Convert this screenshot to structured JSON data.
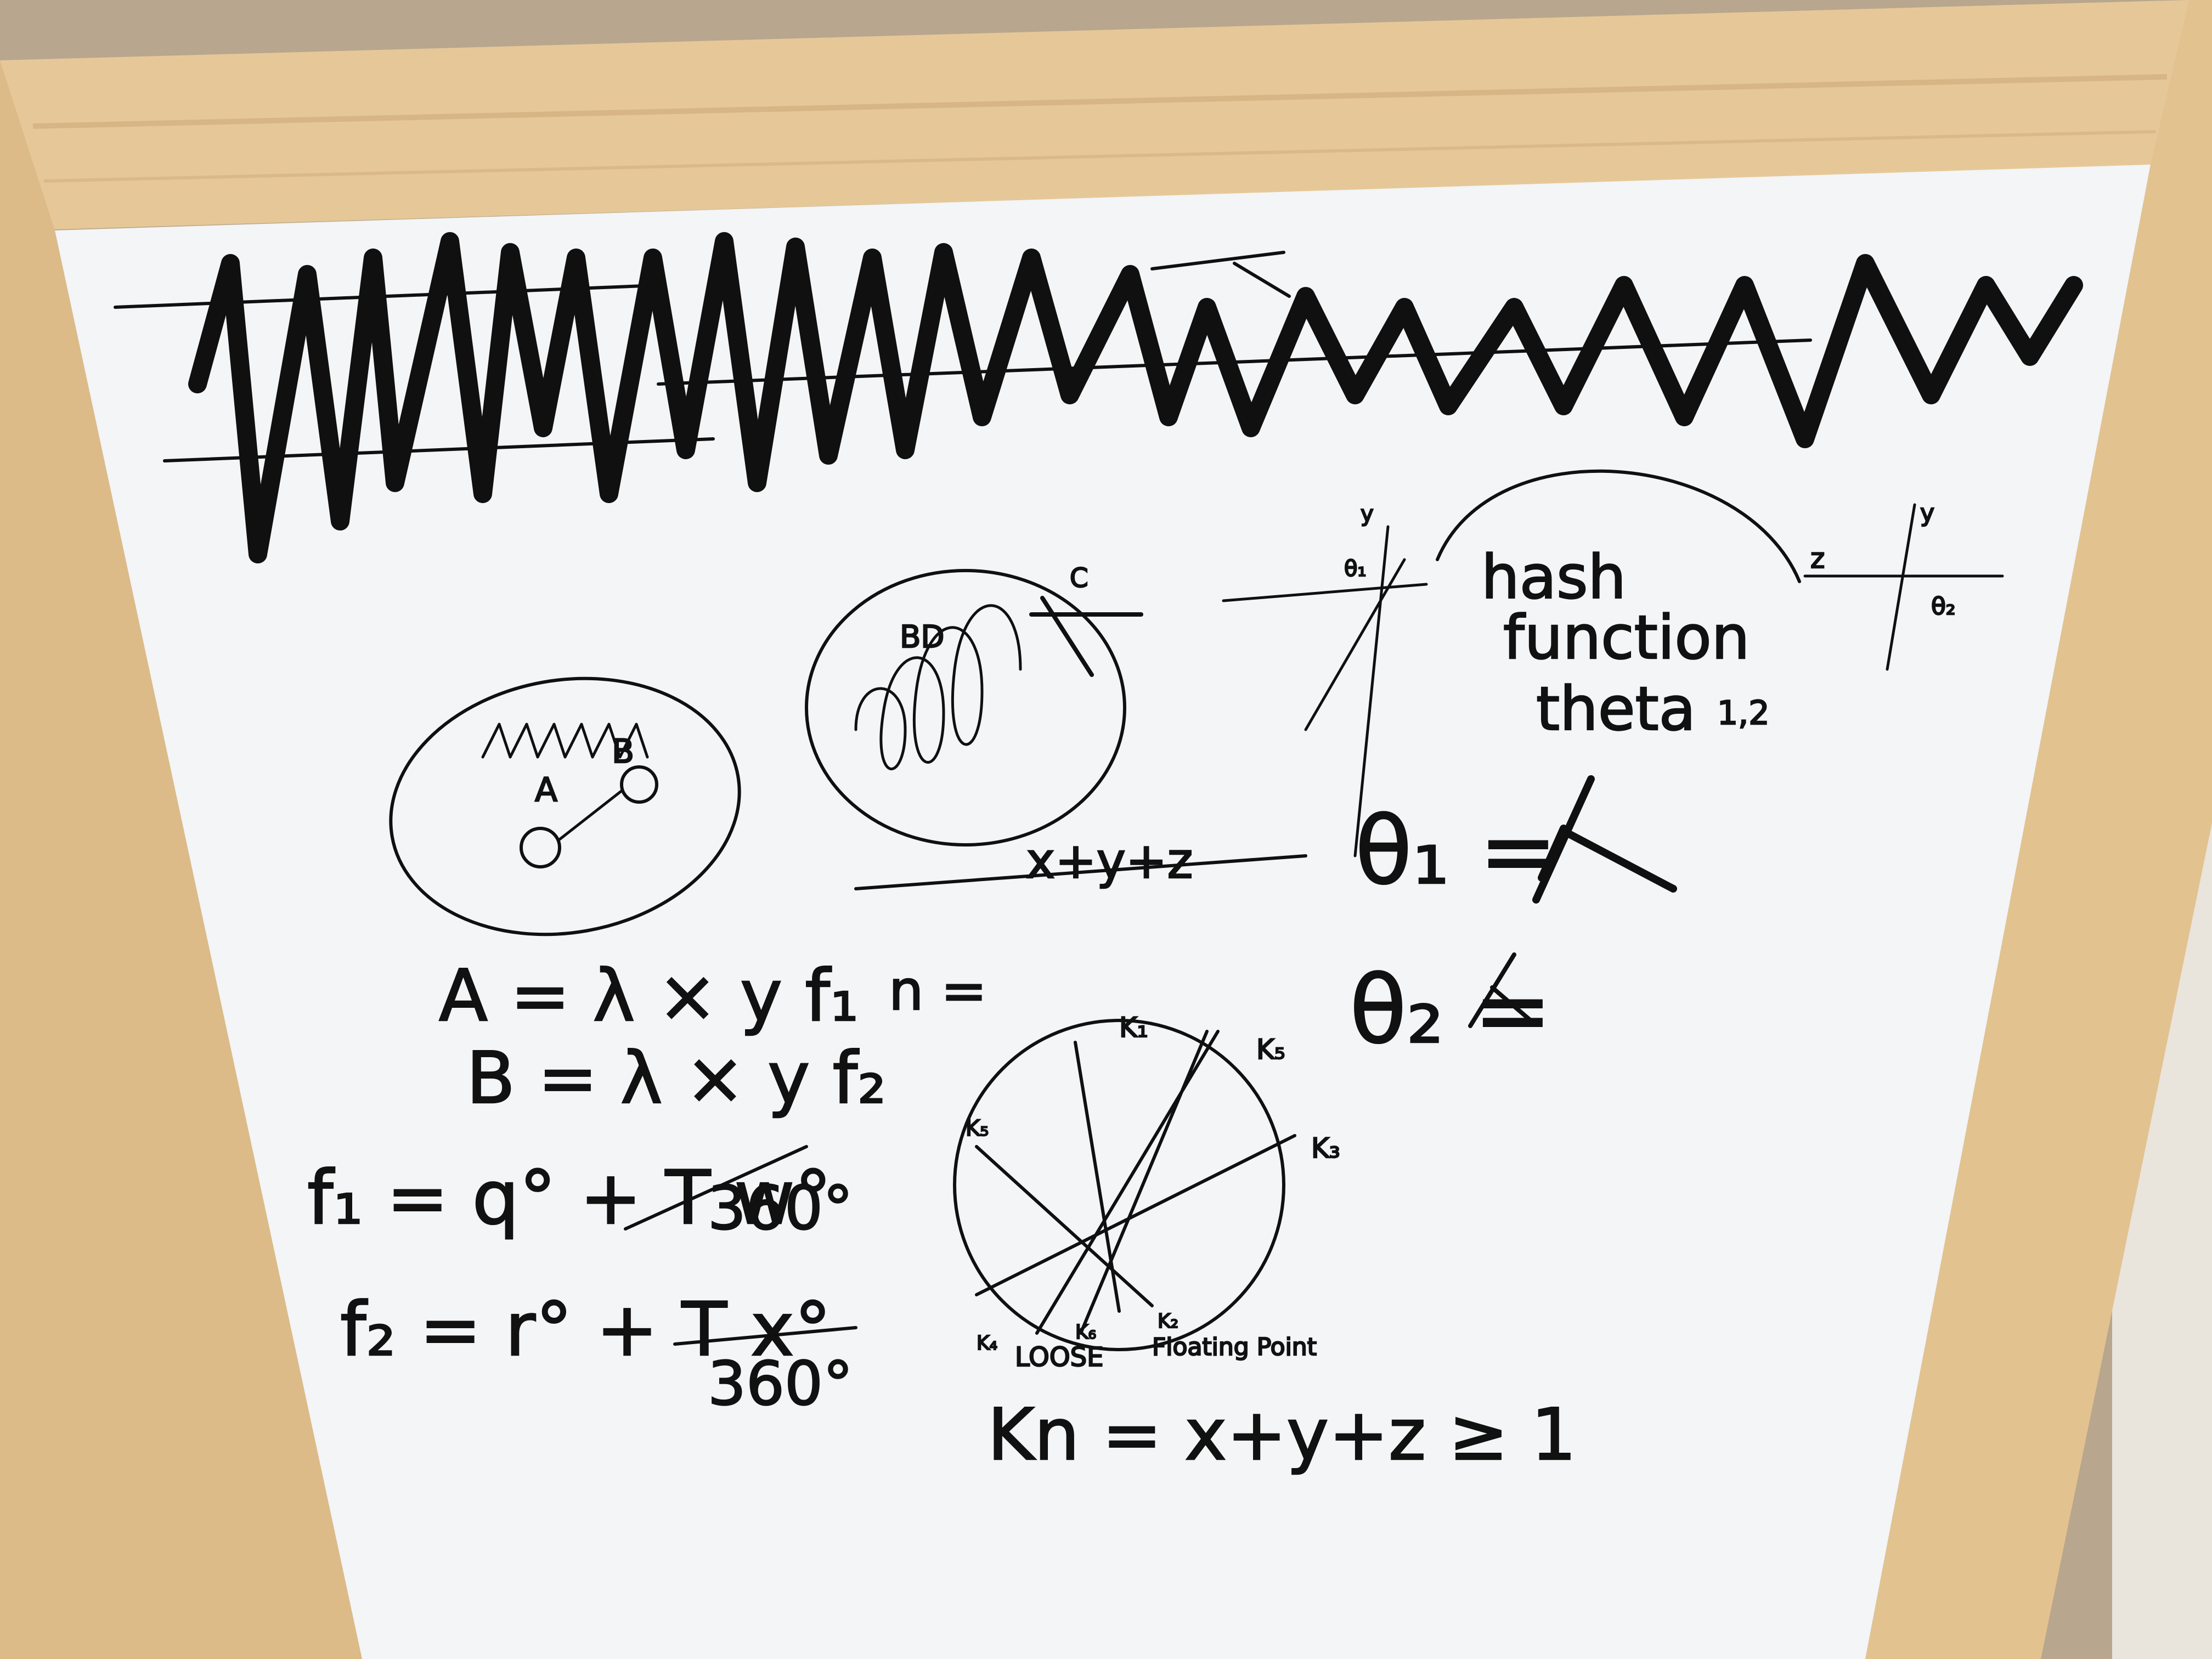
{
  "colors": {
    "wood": "#e6c898",
    "wood_dark": "#c9a373",
    "board": "#f3f5f6",
    "ink": "#101010",
    "wall": "#b8a68e",
    "floor_dark": "#2b2a2c"
  },
  "whiteboard": {
    "diagram_labels": {
      "a": "A",
      "b": "B",
      "bd": "BD",
      "c": "C",
      "y1": "y",
      "y2": "y",
      "z": "z",
      "theta2_small": "θ₂",
      "theta1_small": "θ₁"
    },
    "hash_text": {
      "line1": "hash",
      "line2": "function",
      "line3": "theta",
      "sub": "1,2"
    },
    "vector_sum": "x+y+z",
    "n_equals": "n =",
    "theta_eq": {
      "theta1": "θ₁ =",
      "theta2": "θ₂ ="
    },
    "equations": {
      "a_eq": "A = λ × y f₁",
      "b_eq": "B = λ × y f₂",
      "f1_left": "f₁ = q° + T w°",
      "f1_denominator": "360°",
      "f2_left": "f₂ = r° + T x°",
      "f2_denominator": "360°"
    },
    "circle_labels": {
      "k1": "K₁",
      "k2": "K₂",
      "k3": "K₃",
      "k4": "K₄",
      "k5": "K₅",
      "k6": "K₆",
      "kb": "K₅"
    },
    "loose": "LOOSE",
    "floating_point": "Floating Point",
    "kn_eq": "Kn = x+y+z ≥ 1"
  }
}
